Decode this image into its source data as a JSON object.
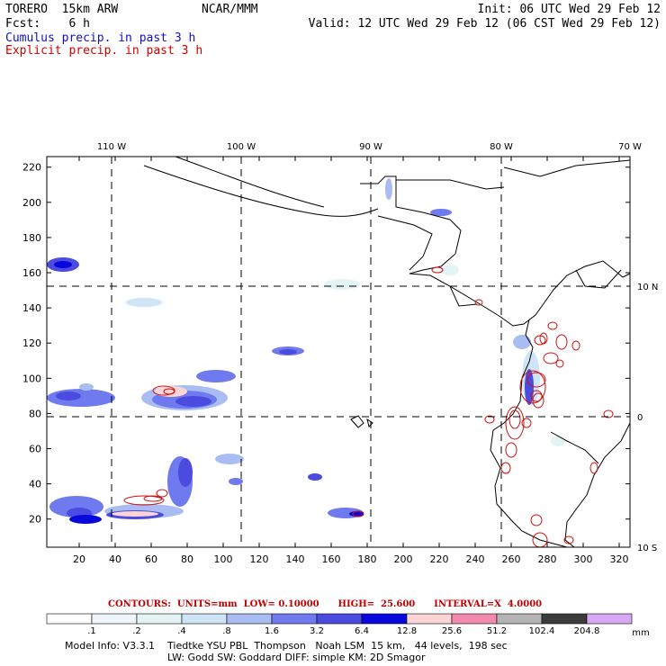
{
  "header": {
    "model": "TORERO  15km ARW",
    "org": "NCAR/MMM",
    "init": "Init: 06 UTC Wed 29 Feb 12",
    "fcst": "Fcst:    6 h",
    "valid": "Valid: 12 UTC Wed 29 Feb 12 (06 CST Wed 29 Feb 12)",
    "legend_cumulus": "Cumulus precip. in past 3 h",
    "legend_explicit": "Explicit precip. in past 3 h"
  },
  "map": {
    "lon_labels": [
      "110 W",
      "100 W",
      "90 W",
      "80 W",
      "70 W"
    ],
    "lat_labels": [
      "10 N",
      "0",
      "10 S"
    ],
    "y_ticks": [
      "220",
      "200",
      "180",
      "160",
      "140",
      "120",
      "100",
      "80",
      "60",
      "40",
      "20"
    ],
    "x_ticks": [
      "20",
      "40",
      "60",
      "80",
      "100",
      "120",
      "140",
      "160",
      "180",
      "200",
      "220",
      "240",
      "260",
      "280",
      "300",
      "320"
    ],
    "colors": {
      "land": "#000000",
      "grid": "#000000",
      "contour": "#d01010"
    }
  },
  "contour_info": {
    "text": "CONTOURS:  UNITS=mm  LOW= 0.10000      HIGH=  25.600      INTERVAL=X  4.0000"
  },
  "colorbar": {
    "labels": [
      ".1",
      ".2",
      ".4",
      ".8",
      "1.6",
      "3.2",
      "6.4",
      "12.8",
      "25.6",
      "51.2",
      "102.4",
      "204.8"
    ],
    "unit": "mm",
    "colors": [
      "#ffffff",
      "#eef5fb",
      "#e4f4f4",
      "#cfe4f7",
      "#a9bdf2",
      "#6f7aee",
      "#4b4be0",
      "#0808dc",
      "#fdd5d5",
      "#f28ab0",
      "#b4b4b4",
      "#3c3c3c",
      "#d8a8f4"
    ]
  },
  "model_info": {
    "line1": "Model Info: V3.3.1    Tiedtke YSU PBL  Thompson   Noah LSM  15 km,   44 levels,  198 sec",
    "line2": "LW: Godd SW: Goddard DIFF: simple KM: 2D Smagor"
  }
}
